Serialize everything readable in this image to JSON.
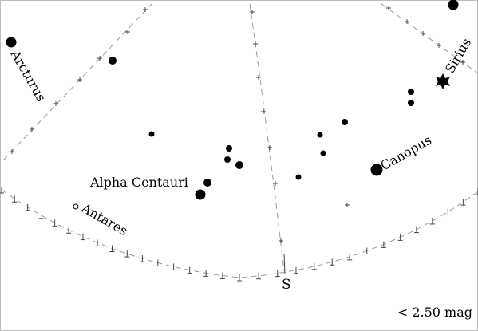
{
  "chart": {
    "labels": {
      "arcturus": "Arcturus",
      "sirius": "Sirius",
      "canopus": "Canopus",
      "alpha_centauri": "Alpha Centauri",
      "antares": "Antares"
    },
    "direction": "S",
    "magnitude_limit": "< 2.50 mag"
  }
}
